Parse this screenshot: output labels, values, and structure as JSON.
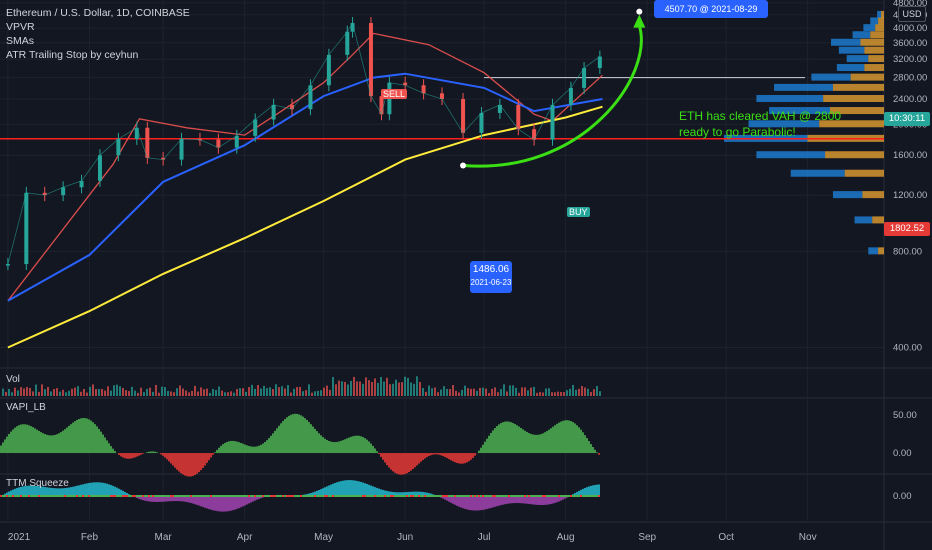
{
  "header": {
    "symbol": "Ethereum / U.S. Dollar, 1D, COINBASE",
    "indicators": [
      "VPVR",
      "SMAs",
      "ATR Trailing Stop by ceyhun"
    ],
    "currency": "USD"
  },
  "annotation": {
    "line1": "ETH has cleared VAH @ 2800",
    "line2": "ready to go Parabolic!"
  },
  "callouts": {
    "low_price": "1486.06",
    "low_date": "2021-06-23",
    "target": "4507.70 @ 2021-08-29"
  },
  "price_tags": {
    "countdown": "10:30:11",
    "support": "1802.52"
  },
  "signal_labels": {
    "sell": "SELL",
    "buy": "BUY"
  },
  "panes": {
    "volume": "Vol",
    "vapi": "VAPI_LB",
    "ttm": "TTM Squeeze"
  },
  "colors": {
    "background": "#131722",
    "up": "#26a69a",
    "down": "#ef5350",
    "sma_fast": "#2962ff",
    "sma_slow": "#ffeb3b",
    "projection": "#3be014",
    "support_line": "#ff1e1e",
    "vpvr_up": "#1e88e5",
    "vpvr_down": "#f0a830",
    "callout": "#2962ff"
  },
  "chart_data": {
    "type": "line",
    "title": "Ethereum / U.S. Dollar, 1D, COINBASE",
    "xaxis": {
      "tick_labels": [
        "2021",
        "Feb",
        "Mar",
        "Apr",
        "May",
        "Jun",
        "Jul",
        "Aug",
        "Sep",
        "Oct",
        "Nov"
      ],
      "tick_dates": [
        "2021-01-01",
        "2021-02-01",
        "2021-03-01",
        "2021-04-01",
        "2021-05-01",
        "2021-06-01",
        "2021-07-01",
        "2021-08-01",
        "2021-09-01",
        "2021-10-01",
        "2021-11-01"
      ],
      "range": [
        "2020-12-29",
        "2021-11-30"
      ]
    },
    "yaxis": {
      "scale": "log",
      "range": [
        350,
        4900
      ],
      "tick_labels": [
        "400.00",
        "800.00",
        "1200.00",
        "1600.00",
        "2000.00",
        "2400.00",
        "2800.00",
        "3200.00",
        "3600.00",
        "4000.00",
        "4400.00",
        "4800.00"
      ],
      "tick_values": [
        400,
        800,
        1200,
        1600,
        2000,
        2400,
        2800,
        3200,
        3600,
        4000,
        4400,
        4800
      ]
    },
    "series": [
      {
        "style": "candlestick-close",
        "x": [
          "2021-01-01",
          "2021-01-08",
          "2021-01-15",
          "2021-01-22",
          "2021-01-29",
          "2021-02-05",
          "2021-02-12",
          "2021-02-19",
          "2021-02-23",
          "2021-03-01",
          "2021-03-08",
          "2021-03-15",
          "2021-03-22",
          "2021-03-29",
          "2021-04-05",
          "2021-04-12",
          "2021-04-19",
          "2021-04-26",
          "2021-05-03",
          "2021-05-10",
          "2021-05-12",
          "2021-05-19",
          "2021-05-23",
          "2021-05-26",
          "2021-06-01",
          "2021-06-08",
          "2021-06-15",
          "2021-06-23",
          "2021-06-30",
          "2021-07-07",
          "2021-07-14",
          "2021-07-20",
          "2021-07-27",
          "2021-08-03",
          "2021-08-08",
          "2021-08-14"
        ],
        "y": [
          730,
          1220,
          1200,
          1270,
          1330,
          1600,
          1800,
          1950,
          1570,
          1550,
          1800,
          1790,
          1690,
          1840,
          2070,
          2300,
          2230,
          2650,
          3300,
          3900,
          4150,
          2450,
          2150,
          2700,
          2650,
          2500,
          2400,
          1880,
          2170,
          2300,
          1930,
          1790,
          2300,
          2600,
          3000,
          3260
        ]
      },
      {
        "name": "SMA fast",
        "x": [
          "2021-01-01",
          "2021-02-01",
          "2021-03-01",
          "2021-04-01",
          "2021-05-01",
          "2021-05-20",
          "2021-06-01",
          "2021-07-01",
          "2021-07-20",
          "2021-08-15"
        ],
        "y": [
          560,
          780,
          1320,
          1720,
          2450,
          2800,
          2880,
          2600,
          2200,
          2400
        ]
      },
      {
        "name": "SMA slow",
        "x": [
          "2021-01-01",
          "2021-02-01",
          "2021-03-01",
          "2021-04-01",
          "2021-05-01",
          "2021-06-01",
          "2021-07-01",
          "2021-08-01",
          "2021-08-15"
        ],
        "y": [
          400,
          520,
          680,
          880,
          1150,
          1550,
          1850,
          2100,
          2270
        ]
      },
      {
        "name": "ATR trailing stop",
        "x": [
          "2021-01-01",
          "2021-02-10",
          "2021-02-20",
          "2021-03-10",
          "2021-04-01",
          "2021-04-15",
          "2021-05-01",
          "2021-05-12",
          "2021-05-20",
          "2021-06-10",
          "2021-07-01",
          "2021-07-20",
          "2021-07-27",
          "2021-08-15"
        ],
        "y": [
          560,
          1500,
          2080,
          1950,
          1850,
          2200,
          2700,
          3300,
          3850,
          3550,
          2900,
          2150,
          2050,
          2850
        ]
      }
    ],
    "horizontal_lines": [
      {
        "label": "VAH",
        "y": 2800
      },
      {
        "label": "support",
        "y": 1802.52
      }
    ],
    "projection": {
      "from": [
        "2021-06-23",
        1486.06
      ],
      "to": [
        "2021-08-29",
        4507.7
      ]
    },
    "volume_profile": {
      "price_levels": [
        800,
        1000,
        1200,
        1400,
        1600,
        1800,
        2000,
        2200,
        2400,
        2600,
        2800,
        3000,
        3200,
        3400,
        3600,
        3800,
        4000,
        4200,
        4400
      ],
      "up_volume": [
        10,
        18,
        30,
        55,
        70,
        85,
        72,
        62,
        68,
        60,
        40,
        28,
        22,
        26,
        30,
        18,
        12,
        8,
        4
      ],
      "down_volume": [
        6,
        12,
        22,
        40,
        60,
        78,
        66,
        55,
        62,
        52,
        34,
        20,
        16,
        20,
        24,
        14,
        9,
        6,
        3
      ]
    },
    "panes": [
      {
        "name": "Vol",
        "type": "bar"
      },
      {
        "name": "VAPI_LB",
        "type": "area",
        "ytick_labels": [
          "50.00",
          "0.00"
        ],
        "ylim": [
          -25,
          70
        ]
      },
      {
        "name": "TTM Squeeze",
        "type": "bar",
        "ytick_labels": [
          "0.00"
        ]
      }
    ]
  }
}
